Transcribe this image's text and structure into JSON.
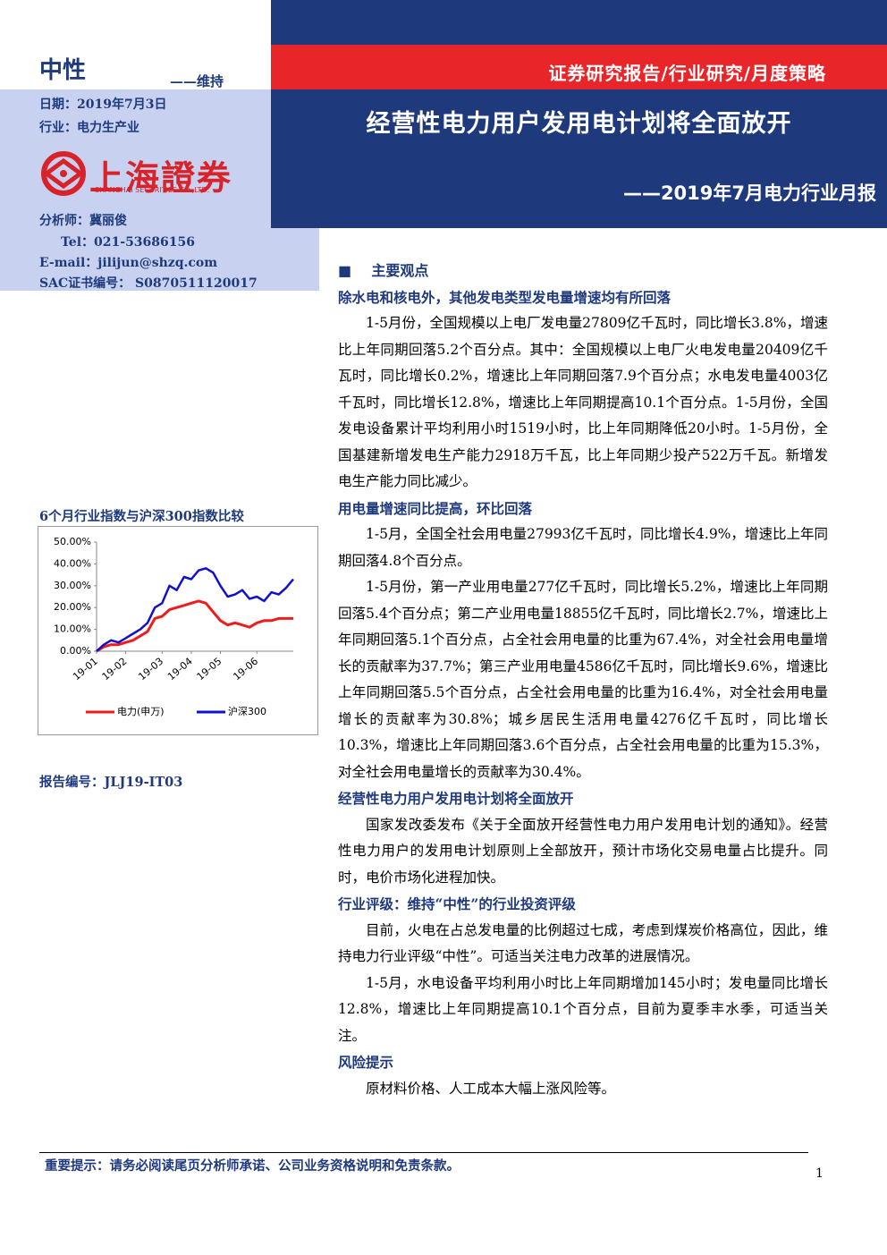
{
  "header": {
    "rating": "中性",
    "rating_note": "——维持",
    "series": "证券研究报告/行业研究/月度策略",
    "title": "经营性电力用户发用电计划将全面放开",
    "subtitle": "——2019年7月电力行业月报"
  },
  "sidebar": {
    "date": "日期：2019年7月3日",
    "industry": "行业：电力生产业",
    "logo": "上海證券",
    "logo_en": "SHANGHAI SECURITIES CO.,LTD.",
    "analyst": "分析师：冀丽俊",
    "tel": "Tel：021-53686156",
    "email": "E-mail：jilijun@shzq.com",
    "sac": "SAC证书编号： S0870511120017",
    "chart_title": "6个月行业指数与沪深300指数比较",
    "report_no": "报告编号：JLJ19-IT03"
  },
  "chart": {
    "type": "line",
    "categories": [
      "19-01",
      null,
      null,
      null,
      "19-02",
      null,
      null,
      null,
      null,
      "19-03",
      null,
      null,
      null,
      "19-04",
      null,
      null,
      null,
      "19-05",
      null,
      null,
      null,
      null,
      "19-06",
      null,
      null,
      null,
      null,
      null
    ],
    "series": [
      {
        "name": "电力(申万)",
        "color": "#ee1c1c",
        "values": [
          0,
          2,
          3,
          3,
          4,
          5,
          7,
          9,
          15,
          16,
          19,
          20,
          21,
          22,
          23,
          22,
          18,
          14,
          12,
          13,
          12,
          11,
          13,
          14,
          14,
          15,
          15,
          15
        ]
      },
      {
        "name": "沪深300",
        "color": "#1010d0",
        "values": [
          0,
          3,
          5,
          4,
          6,
          8,
          10,
          13,
          20,
          22,
          30,
          28,
          34,
          33,
          37,
          38,
          36,
          30,
          25,
          26,
          28,
          24,
          25,
          23,
          27,
          26,
          29,
          33
        ]
      }
    ],
    "ylim": [
      0,
      50
    ],
    "yticks": [
      {
        "value": 0,
        "label": "0.00%"
      },
      {
        "value": 10,
        "label": "10.00%"
      },
      {
        "value": 20,
        "label": "20.00%"
      },
      {
        "value": 30,
        "label": "30.00%"
      },
      {
        "value": 40,
        "label": "40.00%"
      },
      {
        "value": 50,
        "label": "50.00%"
      }
    ]
  },
  "body": {
    "section": "主要观点",
    "blocks": [
      {
        "heading": "除水电和核电外，其他发电类型发电量增速均有所回落",
        "paragraphs": [
          "1-5月份，全国规模以上电厂发电量27809亿千瓦时，同比增长3.8%，增速比上年同期回落5.2个百分点。其中：全国规模以上电厂火电发电量20409亿千瓦时，同比增长0.2%，增速比上年同期回落7.9个百分点；水电发电量4003亿千瓦时，同比增长12.8%，增速比上年同期提高10.1个百分点。1-5月份，全国发电设备累计平均利用小时1519小时，比上年同期降低20小时。1-5月份，全国基建新增发电生产能力2918万千瓦，比上年同期少投产522万千瓦。新增发电生产能力同比减少。"
        ]
      },
      {
        "heading": "用电量增速同比提高，环比回落",
        "paragraphs": [
          "1-5月，全国全社会用电量27993亿千瓦时，同比增长4.9%，增速比上年同期回落4.8个百分点。",
          "1-5月份，第一产业用电量277亿千瓦时，同比增长5.2%，增速比上年同期回落5.4个百分点；第二产业用电量18855亿千瓦时，同比增长2.7%，增速比上年同期回落5.1个百分点，占全社会用电量的比重为67.4%，对全社会用电量增长的贡献率为37.7%；第三产业用电量4586亿千瓦时，同比增长9.6%，增速比上年同期回落5.5个百分点，占全社会用电量的比重为16.4%，对全社会用电量增长的贡献率为30.8%；城乡居民生活用电量4276亿千瓦时，同比增长10.3%，增速比上年同期回落3.6个百分点，占全社会用电量的比重为15.3%，对全社会用电量增长的贡献率为30.4%。"
        ]
      },
      {
        "heading": "经营性电力用户发用电计划将全面放开",
        "paragraphs": [
          "国家发改委发布《关于全面放开经营性电力用户发用电计划的通知》。经营性电力用户的发用电计划原则上全部放开，预计市场化交易电量占比提升。同时，电价市场化进程加快。"
        ]
      },
      {
        "heading": "行业评级：维持“中性”的行业投资评级",
        "paragraphs": [
          "目前，火电在占总发电量的比例超过七成，考虑到煤炭价格高位，因此，维持电力行业评级“中性”。可适当关注电力改革的进展情况。",
          "1-5月，水电设备平均利用小时比上年同期增加145小时；发电量同比增长12.8%，增速比上年同期提高10.1个百分点，目前为夏季丰水季，可适当关注。"
        ]
      },
      {
        "heading": "风险提示",
        "paragraphs": [
          "原材料价格、人工成本大幅上涨风险等。"
        ]
      }
    ]
  },
  "footer": {
    "notice": "重要提示：请务必阅读尾页分析师承诺、公司业务资格说明和免责条款。",
    "page": "1"
  }
}
